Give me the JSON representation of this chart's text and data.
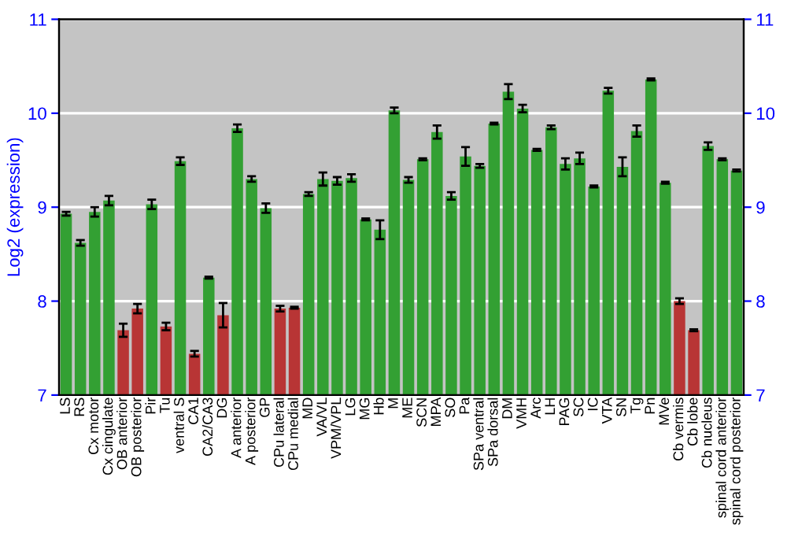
{
  "chart_data": {
    "type": "bar",
    "ylabel": "Log2 (expression)",
    "categories": [
      "LS",
      "RS",
      "Cx motor",
      "Cx cingulate",
      "OB anterior",
      "OB posterior",
      "Pir",
      "Tu",
      "ventral S",
      "CA1",
      "CA2/CA3",
      "DG",
      "A anterior",
      "A posterior",
      "GP",
      "CPu lateral",
      "CPu medial",
      "MD",
      "VA/VL",
      "VPM/VPL",
      "LG",
      "MG",
      "Hb",
      "M",
      "ME",
      "SCN",
      "MPA",
      "SO",
      "Pa",
      "SPa ventral",
      "SPa dorsal",
      "DM",
      "VMH",
      "Arc",
      "LH",
      "PAG",
      "SC",
      "IC",
      "VTA",
      "SN",
      "Tg",
      "Pn",
      "MVe",
      "Cb vermis",
      "Cb lobe",
      "Cb nucleus",
      "spinal cord anterior",
      "spinal cord posterior"
    ],
    "values": [
      8.93,
      8.62,
      8.95,
      9.07,
      7.69,
      7.92,
      9.03,
      7.73,
      9.49,
      7.44,
      8.25,
      7.85,
      9.84,
      9.3,
      8.99,
      7.92,
      7.93,
      9.14,
      9.3,
      9.28,
      9.31,
      8.87,
      8.76,
      10.03,
      9.29,
      9.51,
      9.8,
      9.12,
      9.54,
      9.44,
      9.89,
      10.23,
      10.05,
      9.61,
      9.85,
      9.46,
      9.52,
      9.22,
      10.24,
      9.43,
      9.81,
      10.36,
      9.26,
      8.0,
      7.69,
      9.65,
      9.51,
      9.39
    ],
    "errors": [
      0.02,
      0.03,
      0.05,
      0.05,
      0.07,
      0.05,
      0.05,
      0.04,
      0.04,
      0.03,
      0.01,
      0.13,
      0.04,
      0.03,
      0.05,
      0.03,
      0.01,
      0.02,
      0.07,
      0.04,
      0.04,
      0.01,
      0.1,
      0.03,
      0.03,
      0.01,
      0.07,
      0.04,
      0.1,
      0.02,
      0.01,
      0.08,
      0.04,
      0.01,
      0.02,
      0.06,
      0.06,
      0.01,
      0.03,
      0.1,
      0.06,
      0.01,
      0.01,
      0.03,
      0.01,
      0.04,
      0.01,
      0.01
    ],
    "colors": [
      "#33a033",
      "#33a033",
      "#33a033",
      "#33a033",
      "#b83535",
      "#b83535",
      "#33a033",
      "#b83535",
      "#33a033",
      "#b83535",
      "#33a033",
      "#b83535",
      "#33a033",
      "#33a033",
      "#33a033",
      "#b83535",
      "#b83535",
      "#33a033",
      "#33a033",
      "#33a033",
      "#33a033",
      "#33a033",
      "#33a033",
      "#33a033",
      "#33a033",
      "#33a033",
      "#33a033",
      "#33a033",
      "#33a033",
      "#33a033",
      "#33a033",
      "#33a033",
      "#33a033",
      "#33a033",
      "#33a033",
      "#33a033",
      "#33a033",
      "#33a033",
      "#33a033",
      "#33a033",
      "#33a033",
      "#33a033",
      "#33a033",
      "#b83535",
      "#b83535",
      "#33a033",
      "#33a033",
      "#33a033"
    ],
    "ylim": [
      7,
      11
    ],
    "yticks": [
      7,
      8,
      9,
      10,
      11
    ],
    "y2lim": [
      7,
      11
    ],
    "y2ticks": [
      7,
      8,
      9,
      10,
      11
    ],
    "grid": "y"
  }
}
